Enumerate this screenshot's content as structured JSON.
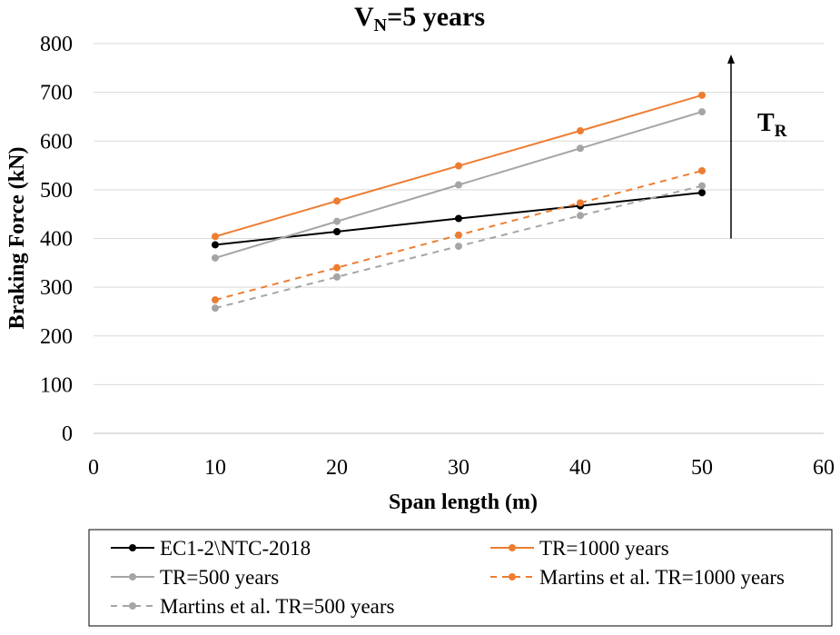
{
  "chart_data": {
    "type": "line",
    "title": {
      "main": "V",
      "sub": "N",
      "rest": "=5 years"
    },
    "xlabel": "Span length (m)",
    "ylabel": "Braking Force (kN)",
    "xlim": [
      0,
      60
    ],
    "ylim": [
      0,
      800
    ],
    "xticks": [
      "0",
      "10",
      "20",
      "30",
      "40",
      "50",
      "60"
    ],
    "yticks": [
      "0",
      "100",
      "200",
      "300",
      "400",
      "500",
      "600",
      "700",
      "800"
    ],
    "grid": "horizontal",
    "legend_position": "bottom",
    "x": [
      10,
      20,
      30,
      40,
      50
    ],
    "series": [
      {
        "name": "EC1-2\\NTC-2018",
        "values": [
          387,
          414,
          441,
          467,
          494
        ],
        "color": "#000000",
        "dashed": false
      },
      {
        "name": "TR=1000 years",
        "values": [
          404,
          477,
          549,
          621,
          694
        ],
        "color": "#ED7D31",
        "dashed": false
      },
      {
        "name": "TR=500 years",
        "values": [
          360,
          435,
          510,
          585,
          660
        ],
        "color": "#A5A5A5",
        "dashed": false
      },
      {
        "name": "Martins et al. TR=1000 years",
        "values": [
          274,
          340,
          407,
          473,
          539
        ],
        "color": "#ED7D31",
        "dashed": true
      },
      {
        "name": "Martins et al. TR=500 years",
        "values": [
          257,
          321,
          384,
          447,
          508
        ],
        "color": "#A5A5A5",
        "dashed": true
      }
    ],
    "annotation": {
      "main": "T",
      "sub": "R",
      "arrow_from": 400,
      "arrow_to": 800
    }
  }
}
